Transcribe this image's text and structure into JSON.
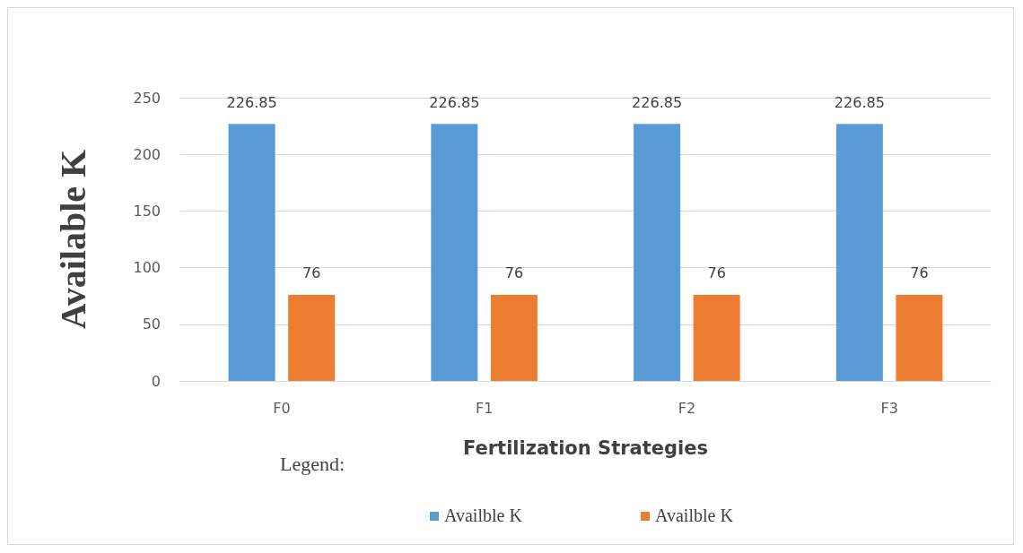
{
  "chart_data": {
    "type": "bar",
    "xlabel": "Fertilization Strategies",
    "ylabel": "Available K",
    "legend_title": "Legend:",
    "categories": [
      "F0",
      "F1",
      "F2",
      "F3"
    ],
    "series": [
      {
        "name": "Availble K",
        "color": "#5b9bd5",
        "values": [
          226.85,
          226.85,
          226.85,
          226.85
        ]
      },
      {
        "name": "Availble K",
        "color": "#ed7d31",
        "values": [
          76,
          76,
          76,
          76
        ]
      }
    ],
    "ylim": [
      0,
      250
    ],
    "yticks": [
      0,
      50,
      100,
      150,
      200,
      250
    ],
    "grid": "y",
    "legend": "bottom",
    "data_labels": true
  }
}
